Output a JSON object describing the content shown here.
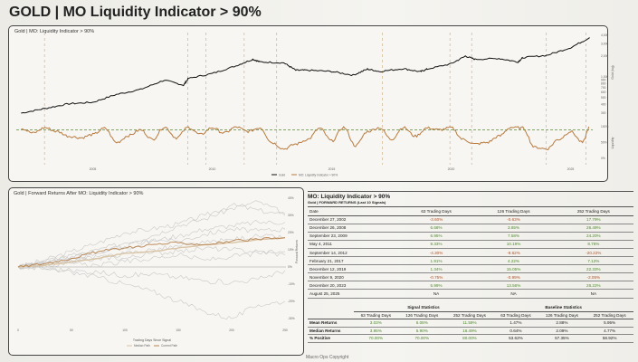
{
  "title": "GOLD | MO Liquidity Indicator > 90%",
  "footer": "Macro Ops Copyright",
  "colors": {
    "gold": "#111111",
    "liquidity": "#b87a3f",
    "threshold": "#5a8a3a",
    "signal": "#c9a77a",
    "median": "#d8c3a5",
    "current": "#b8834f",
    "other": "#c8c8c8"
  },
  "chart_data": [
    {
      "type": "line",
      "title": "Gold | MO: Liquidity Indicator > 90%",
      "x_ticks": [
        "2005",
        "2010",
        "2015",
        "2020",
        "2025"
      ],
      "gold_axis_label": "Gold (log)",
      "gold_ticks": [
        "4,000",
        "3,000",
        "2,000",
        "1,000",
        "900",
        "800",
        "700",
        "600",
        "500",
        "400",
        "300"
      ],
      "liq_axis_label": "Liquidity",
      "liq_ticks": [
        "100%",
        "50%",
        "0%"
      ],
      "legend": [
        "Gold",
        "MO: Liquidity Indicator > 90%"
      ],
      "threshold": 0.9,
      "signal_dates": [
        2002.98,
        2008.98,
        2009.73,
        2011.34,
        2012.7,
        2017.13,
        2019.95,
        2020.86,
        2023.97,
        2025.65
      ],
      "gold": {
        "x": [
          2002,
          2003,
          2004,
          2005,
          2006,
          2007,
          2008,
          2008.8,
          2009,
          2010,
          2011,
          2011.7,
          2012,
          2013,
          2013.5,
          2014,
          2015,
          2015.9,
          2016.5,
          2017,
          2018,
          2018.7,
          2019,
          2020,
          2020.6,
          2021,
          2022,
          2022.8,
          2023,
          2024,
          2025,
          2025.8
        ],
        "y": [
          300,
          350,
          410,
          430,
          560,
          660,
          900,
          760,
          950,
          1120,
          1450,
          1800,
          1650,
          1600,
          1250,
          1250,
          1200,
          1060,
          1300,
          1200,
          1320,
          1190,
          1300,
          1550,
          2000,
          1800,
          1850,
          1650,
          1900,
          2050,
          2650,
          3700
        ]
      },
      "liquidity": {
        "x": [
          2002,
          2002.5,
          2003,
          2003.5,
          2004,
          2004.5,
          2005,
          2005.5,
          2006,
          2006.5,
          2007,
          2007.5,
          2008,
          2008.5,
          2009,
          2009.5,
          2010,
          2010.5,
          2011,
          2011.5,
          2012,
          2012.5,
          2013,
          2013.5,
          2014,
          2014.5,
          2015,
          2015.5,
          2016,
          2016.5,
          2017,
          2017.5,
          2018,
          2018.5,
          2019,
          2019.5,
          2020,
          2020.5,
          2021,
          2021.5,
          2022,
          2022.5,
          2023,
          2023.5,
          2024,
          2024.5,
          2025,
          2025.5,
          2025.8
        ],
        "y": [
          0.95,
          0.8,
          0.97,
          0.85,
          0.7,
          0.65,
          0.75,
          0.95,
          0.5,
          0.72,
          0.9,
          0.6,
          0.99,
          0.65,
          0.98,
          0.75,
          0.97,
          0.8,
          0.99,
          0.85,
          0.97,
          0.5,
          0.3,
          0.45,
          0.6,
          0.95,
          0.55,
          0.98,
          0.4,
          0.85,
          0.97,
          0.6,
          0.98,
          0.7,
          0.96,
          0.9,
          0.97,
          0.6,
          0.45,
          0.5,
          0.7,
          0.98,
          0.96,
          0.35,
          0.3,
          0.6,
          0.85,
          0.5,
          0.99
        ]
      }
    },
    {
      "type": "line",
      "title": "Gold | Forward Returns After MO: Liquidity Indicator > 90%",
      "xlabel": "Trading Days Since Signal",
      "ylabel": "Forward Returns",
      "x_ticks": [
        "0",
        "50",
        "100",
        "150",
        "200",
        "250"
      ],
      "y_ticks": [
        "40%",
        "30%",
        "20%",
        "10%",
        "0%",
        "-10%",
        "-20%",
        "-30%"
      ],
      "legend": [
        "Median Path",
        "Current Path"
      ],
      "days": [
        0,
        25,
        50,
        75,
        100,
        125,
        150,
        175,
        200,
        225,
        250
      ],
      "paths": [
        [
          0,
          4,
          9,
          14,
          20,
          22,
          25,
          30,
          36,
          33,
          30
        ],
        [
          0,
          3,
          6,
          10,
          14,
          18,
          24,
          28,
          34,
          38,
          31
        ],
        [
          0,
          2,
          5,
          9,
          11,
          15,
          18,
          22,
          24,
          26,
          26
        ],
        [
          0,
          3,
          7,
          8,
          12,
          16,
          15,
          19,
          22,
          21,
          22
        ],
        [
          0,
          1,
          3,
          5,
          8,
          10,
          12,
          14,
          16,
          18,
          17
        ],
        [
          0,
          2,
          4,
          6,
          5,
          8,
          9,
          11,
          10,
          9,
          7
        ],
        [
          0,
          -1,
          -2,
          -3,
          -5,
          -4,
          -6,
          -8,
          -9,
          -7,
          -2
        ],
        [
          0,
          -1,
          -3,
          -6,
          -10,
          -14,
          -20,
          -26,
          -30,
          -22,
          -20
        ],
        [
          0,
          1,
          2,
          1,
          3,
          5,
          7,
          4,
          6,
          8,
          9
        ]
      ],
      "median": [
        0,
        1,
        3,
        5,
        8,
        9,
        11,
        13,
        14,
        16,
        17
      ],
      "current": [
        0,
        2,
        5,
        9,
        11,
        13,
        14,
        13,
        15,
        16,
        17
      ]
    }
  ],
  "table": {
    "title": "MO: Liquidity Indicator > 90%",
    "subtitle": "Gold | FORWARD RETURNS (Last 10 Signals)",
    "headers": [
      "Date",
      "63 Trading Days",
      "126 Trading Days",
      "252 Trading Days"
    ],
    "rows": [
      [
        "December 27, 2002",
        "-3.60%",
        "-0.63%",
        "17.79%"
      ],
      [
        "December 26, 2008",
        "6.68%",
        "3.85%",
        "26.49%"
      ],
      [
        "September 23, 2009",
        "6.95%",
        "7.58%",
        "24.20%"
      ],
      [
        "May 4, 2011",
        "9.33%",
        "10.19%",
        "8.76%"
      ],
      [
        "September 14, 2012",
        "-4.30%",
        "-9.62%",
        "-20.22%"
      ],
      [
        "February 21, 2017",
        "1.91%",
        "4.22%",
        "7.12%"
      ],
      [
        "December 12, 2019",
        "1.34%",
        "15.05%",
        "22.33%"
      ],
      [
        "November 9, 2020",
        "-0.75%",
        "-0.99%",
        "-2.05%"
      ],
      [
        "December 20, 2023",
        "5.99%",
        "13.56%",
        "26.22%"
      ],
      [
        "August 25, 2025",
        "NA",
        "NA",
        "NA"
      ]
    ]
  },
  "stats": {
    "signal_title": "Signal Statistics",
    "baseline_title": "Baseline Statistics",
    "cols": [
      "63 Trading Days",
      "126 Trading Days",
      "252 Trading Days",
      "63 Trading Days",
      "126 Trading Days",
      "252 Trading Days"
    ],
    "rows": [
      [
        "Mean Returns",
        "3.03%",
        "6.08%",
        "11.59%",
        "1.47%",
        "2.88%",
        "5.95%"
      ],
      [
        "Median Returns",
        "3.95%",
        "5.90%",
        "16.49%",
        "0.64%",
        "2.09%",
        "4.77%"
      ],
      [
        "% Positive",
        "70.00%",
        "70.00%",
        "80.00%",
        "53.62%",
        "57.35%",
        "58.92%"
      ]
    ]
  }
}
